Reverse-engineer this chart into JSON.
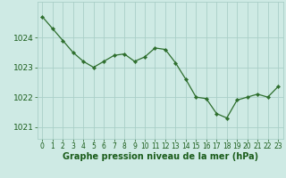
{
  "x": [
    0,
    1,
    2,
    3,
    4,
    5,
    6,
    7,
    8,
    9,
    10,
    11,
    12,
    13,
    14,
    15,
    16,
    17,
    18,
    19,
    20,
    21,
    22,
    23
  ],
  "y": [
    1024.7,
    1024.3,
    1023.9,
    1023.5,
    1023.2,
    1023.0,
    1023.2,
    1023.4,
    1023.45,
    1023.2,
    1023.35,
    1023.65,
    1023.6,
    1023.15,
    1022.6,
    1022.0,
    1021.95,
    1021.45,
    1021.3,
    1021.9,
    1022.0,
    1022.1,
    1022.0,
    1022.35
  ],
  "line_color": "#2d6e2d",
  "marker_color": "#2d6e2d",
  "bg_color": "#ceeae4",
  "grid_color": "#aacfc8",
  "label_color": "#1a5c1a",
  "title": "Graphe pression niveau de la mer (hPa)",
  "yticks": [
    1021,
    1022,
    1023,
    1024
  ],
  "ylim": [
    1020.6,
    1025.2
  ],
  "xlim": [
    -0.5,
    23.5
  ],
  "xtick_fontsize": 5.5,
  "ytick_fontsize": 6.5,
  "title_fontweight": "bold",
  "title_fontsize": 7.0
}
